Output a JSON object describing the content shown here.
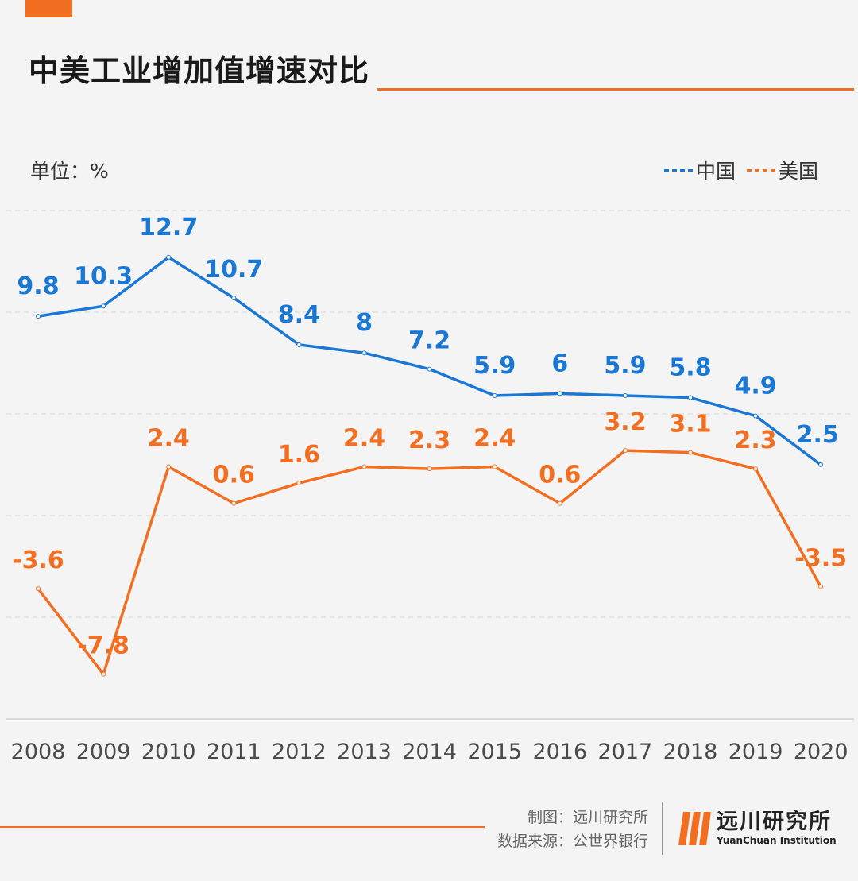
{
  "header": {
    "title": "中美工业增加值增速对比",
    "unit_label": "单位：%"
  },
  "legend": {
    "items": [
      {
        "label": "中国",
        "color": "#1a78d4"
      },
      {
        "label": "美国",
        "color": "#f26f21"
      }
    ]
  },
  "chart_data": {
    "type": "line",
    "x": [
      "2008",
      "2009",
      "2010",
      "2011",
      "2012",
      "2013",
      "2014",
      "2015",
      "2016",
      "2017",
      "2018",
      "2019",
      "2020"
    ],
    "series": [
      {
        "name": "中国",
        "color": "#1a78d4",
        "values": [
          9.8,
          10.3,
          12.7,
          10.7,
          8.4,
          8,
          7.2,
          5.9,
          6,
          5.9,
          5.8,
          4.9,
          2.5
        ]
      },
      {
        "name": "美国",
        "color": "#f26f21",
        "values": [
          -3.6,
          -7.8,
          2.4,
          0.6,
          1.6,
          2.4,
          2.3,
          2.4,
          0.6,
          3.2,
          3.1,
          2.3,
          -3.5
        ]
      }
    ],
    "ylim": [
      -10,
      15
    ],
    "grid": true,
    "legend_position": "top-right",
    "data_labels": true
  },
  "footer": {
    "made_by": "制图：远川研究所",
    "source": "数据来源：公世界银行",
    "brand_cn": "远川研究所",
    "brand_en": "YuanChuan Institution"
  }
}
